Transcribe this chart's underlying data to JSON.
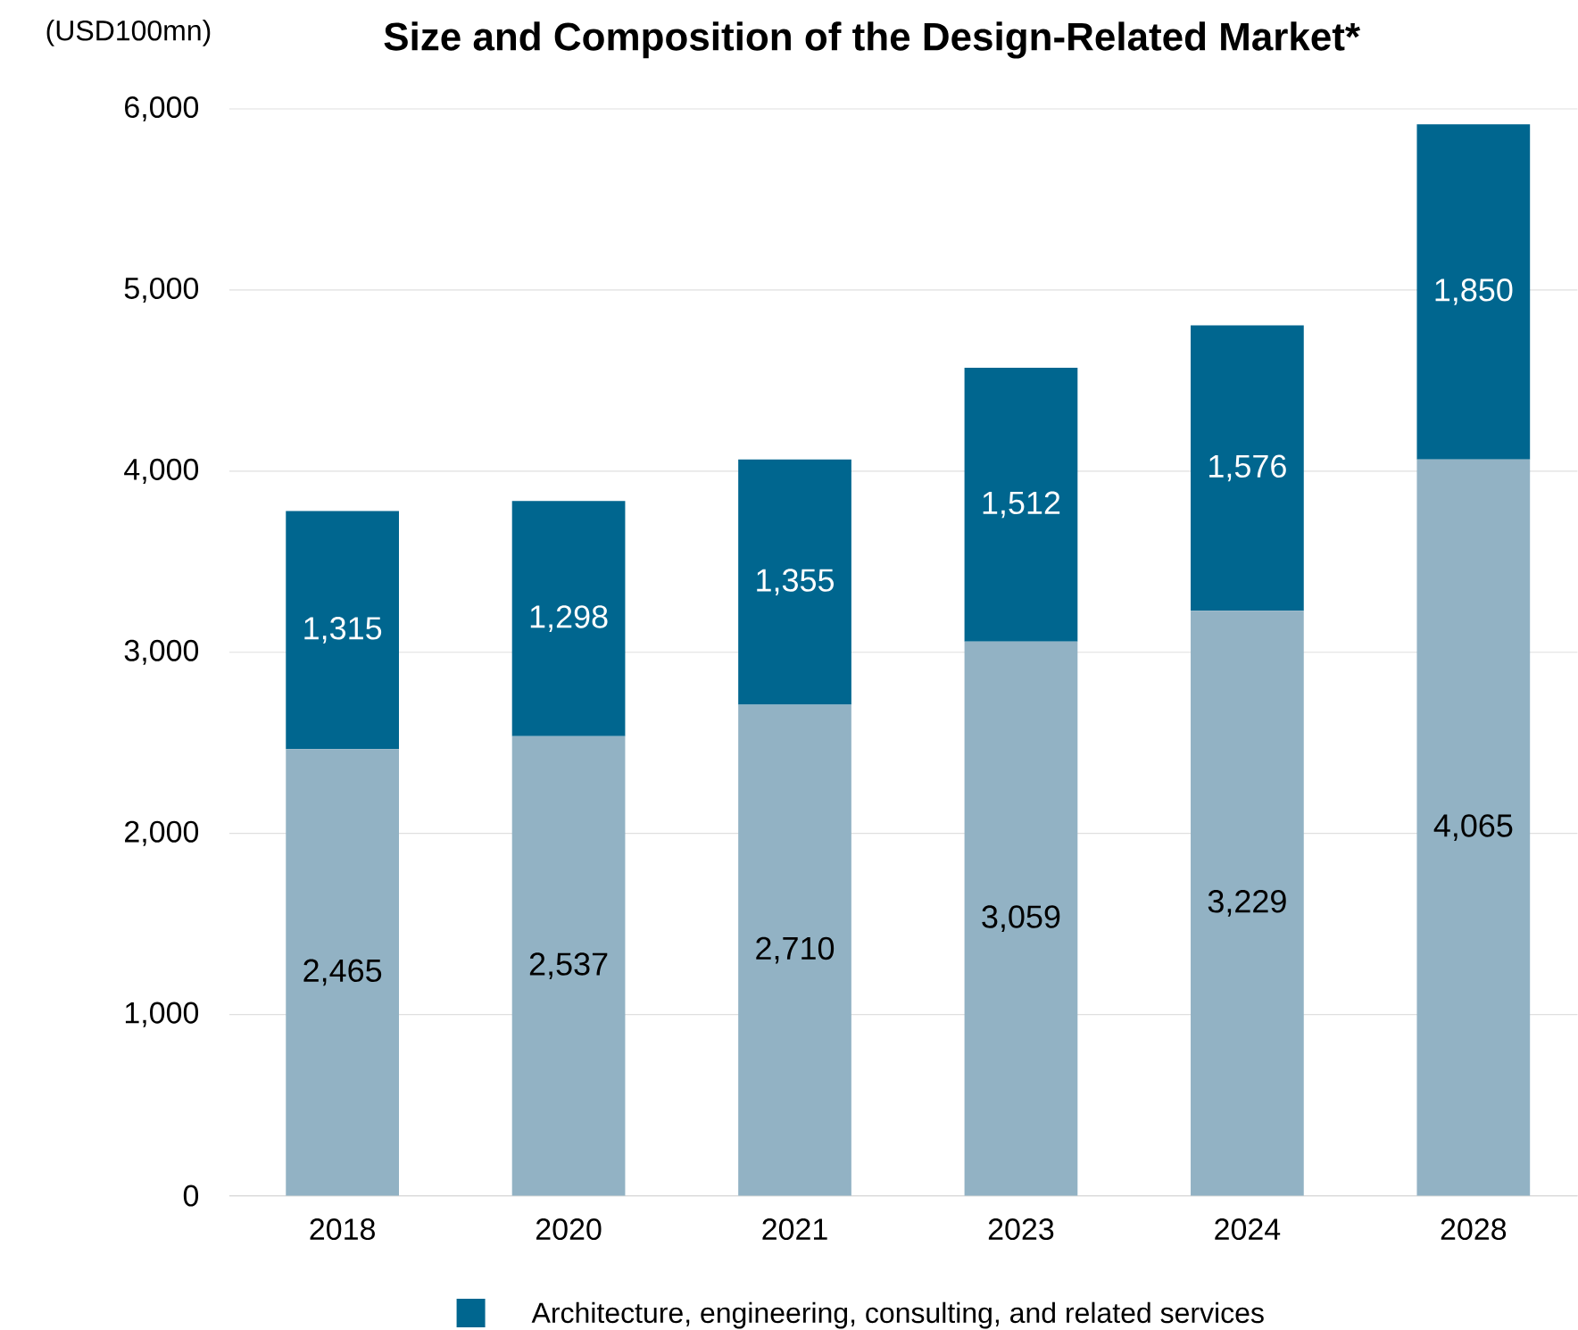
{
  "chart_data": {
    "type": "bar",
    "title": "Size and Composition of the Design-Related Market*",
    "ylabel": "(USD100mn)",
    "categories": [
      "2018",
      "2020",
      "2021",
      "2023",
      "2024",
      "2028"
    ],
    "stacked": true,
    "series": [
      {
        "color": "#92b2c4",
        "values": [
          2465,
          2537,
          2710,
          3059,
          3229,
          4065
        ],
        "value_labels": [
          "2,465",
          "2,537",
          "2,710",
          "3,059",
          "3,229",
          "4,065"
        ]
      },
      {
        "name": "Architecture, engineering, consulting, and related services",
        "color": "#00668f",
        "values": [
          1315,
          1298,
          1355,
          1512,
          1576,
          1850
        ],
        "value_labels": [
          "1,315",
          "1,298",
          "1,355",
          "1,512",
          "1,576",
          "1,850"
        ]
      }
    ],
    "ylim": [
      0,
      6000
    ],
    "yticks": [
      {
        "value": 0,
        "label": "0"
      },
      {
        "value": 1000,
        "label": "1,000"
      },
      {
        "value": 2000,
        "label": "2,000"
      },
      {
        "value": 3000,
        "label": "3,000"
      },
      {
        "value": 4000,
        "label": "4,000"
      },
      {
        "value": 5000,
        "label": "5,000"
      },
      {
        "value": 6000,
        "label": "6,000"
      }
    ],
    "grid": "y",
    "legend": "bottom"
  }
}
